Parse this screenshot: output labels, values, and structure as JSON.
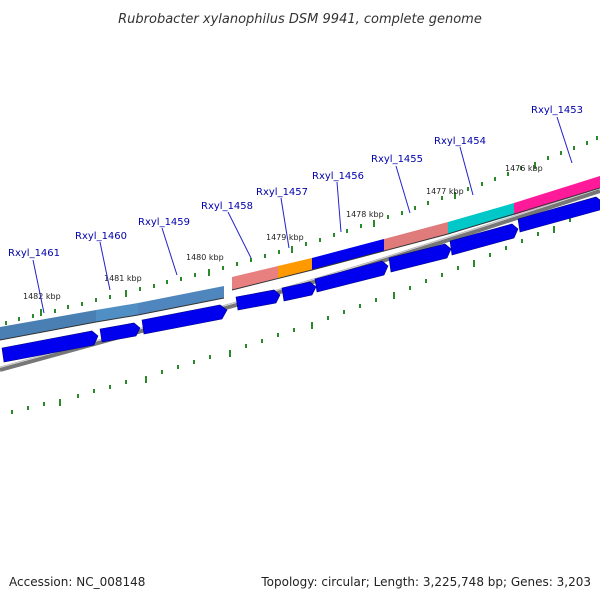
{
  "title": "Rubrobacter xylanophilus DSM 9941, complete genome",
  "footer": {
    "accession": "Accession: NC_008148",
    "topology": "Topology: circular; Length: 3,225,748 bp; Genes: 3,203"
  },
  "genes": [
    {
      "label": "Rxyl_1461",
      "color": "#4a7fb3"
    },
    {
      "label": "Rxyl_1460",
      "color": "#4f8fc4"
    },
    {
      "label": "Rxyl_1459",
      "color": "#4f86bd"
    },
    {
      "label": "Rxyl_1458",
      "color": "#e88080"
    },
    {
      "label": "Rxyl_1457",
      "color": "#ff9900"
    },
    {
      "label": "Rxyl_1456",
      "color": "#0000ee"
    },
    {
      "label": "Rxyl_1455",
      "color": "#e07b7b"
    },
    {
      "label": "Rxyl_1454",
      "color": "#00c8c8"
    },
    {
      "label": "Rxyl_1453",
      "color": "#ff1a9a"
    }
  ],
  "ticks": [
    "1482 kbp",
    "1481 kbp",
    "1480 kbp",
    "1479 kbp",
    "1478 kbp",
    "1477 kbp",
    "1476 kbp"
  ],
  "colors": {
    "forward_arrow": "#0000ee",
    "backbone": "#888888",
    "tick_mark": "#2a8a2a"
  }
}
